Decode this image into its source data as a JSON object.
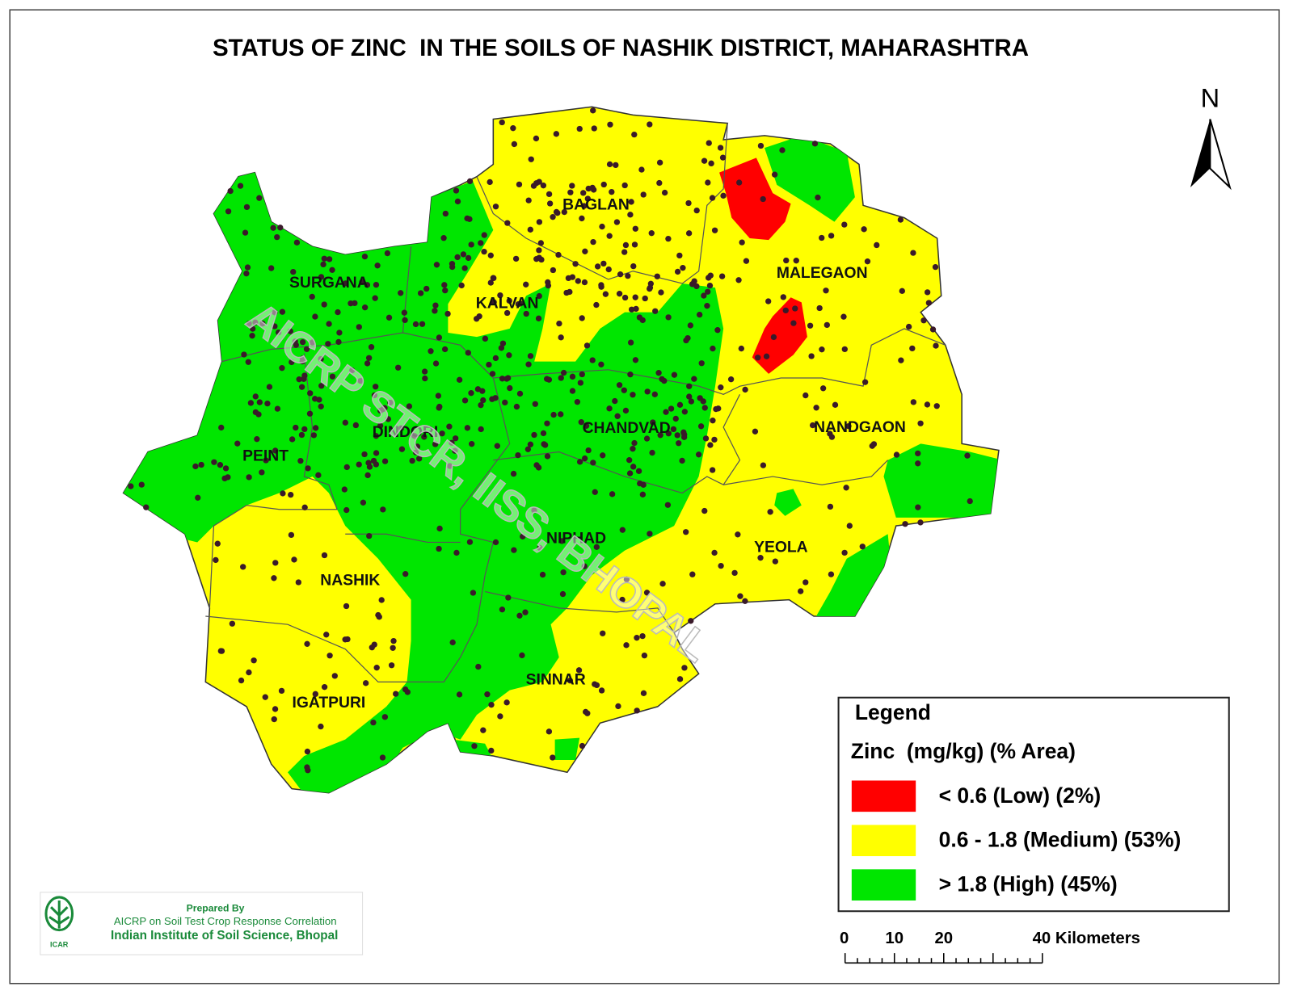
{
  "title": "STATUS OF ZINC  IN THE SOILS OF NASHIK DISTRICT, MAHARASHTRA",
  "north": "N",
  "watermark": "AICRP STCR, IISS, BHOPAL",
  "talukas": [
    {
      "label": "BAGLAN"
    },
    {
      "label": "MALEGAON"
    },
    {
      "label": "SURGANA"
    },
    {
      "label": "KALVAN"
    },
    {
      "label": "DINDORI"
    },
    {
      "label": "CHANDVAD"
    },
    {
      "label": "NANDGAON"
    },
    {
      "label": "PEINT"
    },
    {
      "label": "NIPHAD"
    },
    {
      "label": "YEOLA"
    },
    {
      "label": "NASHIK"
    },
    {
      "label": "SINNAR"
    },
    {
      "label": "IGATPURI"
    }
  ],
  "legend": {
    "title": "Legend",
    "subtitle": "Zinc  (mg/kg) (% Area)",
    "items": [
      {
        "label": "< 0.6 (Low) (2%)",
        "color": "#ff0000"
      },
      {
        "label": "0.6 - 1.8 (Medium) (53%)",
        "color": "#ffff00"
      },
      {
        "label": "> 1.8 (High) (45%)",
        "color": "#00e600"
      }
    ]
  },
  "scale_bar": {
    "labels": [
      "0",
      "10",
      "20",
      "40 Kilometers"
    ]
  },
  "credit": {
    "prepared_by": "Prepared By",
    "org": "AICRP on Soil Test Crop Response Correlation",
    "institute": "Indian Institute of Soil Science, Bhopal",
    "logo_text": "ICAR"
  }
}
